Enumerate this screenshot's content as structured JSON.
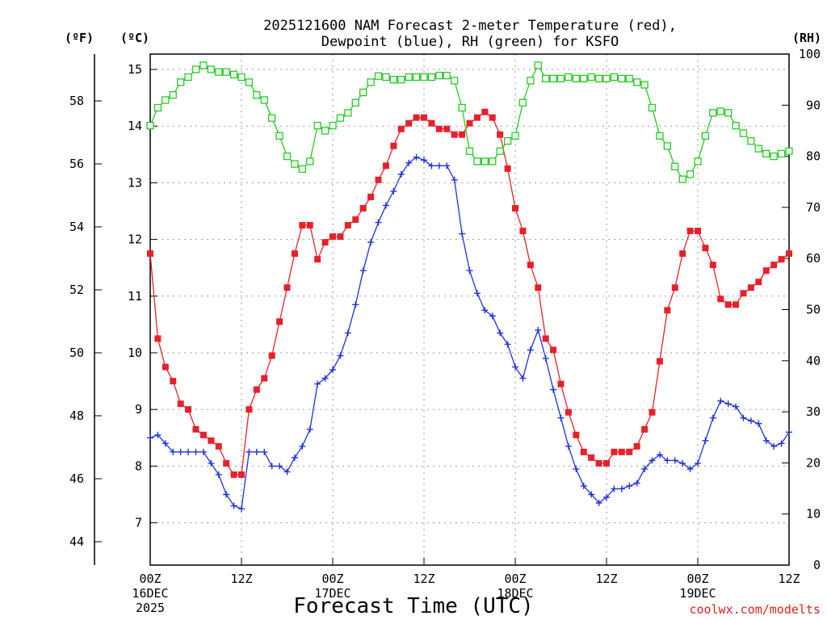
{
  "chart_data": {
    "type": "line",
    "title_lines": [
      "2025121600 NAM Forecast 2-meter Temperature (red),",
      "Dewpoint (blue), RH (green) for KSFO"
    ],
    "xlabel": "Forecast Time (UTC)",
    "credit": "coolwx.com/modelts",
    "y_left_outer_label": "(ºF)",
    "y_left_label": "(ºC)",
    "y_right_label": "(RH)",
    "x_ticks": [
      {
        "h": 0,
        "lines": [
          "00Z",
          "16DEC",
          "2025"
        ]
      },
      {
        "h": 12,
        "lines": [
          "12Z"
        ]
      },
      {
        "h": 24,
        "lines": [
          "00Z",
          "17DEC"
        ]
      },
      {
        "h": 36,
        "lines": [
          "12Z"
        ]
      },
      {
        "h": 48,
        "lines": [
          "00Z",
          "18DEC"
        ]
      },
      {
        "h": 60,
        "lines": [
          "12Z"
        ]
      },
      {
        "h": 72,
        "lines": [
          "00Z",
          "19DEC"
        ]
      },
      {
        "h": 84,
        "lines": [
          "12Z"
        ]
      }
    ],
    "xlim": [
      0,
      84
    ],
    "ylim_c": [
      6.2,
      15.25
    ],
    "ylim_rh": [
      0,
      100
    ],
    "yticks_c": [
      7,
      8,
      9,
      10,
      11,
      12,
      13,
      14,
      15
    ],
    "yticks_f": [
      44,
      46,
      48,
      50,
      52,
      54,
      56,
      58
    ],
    "yticks_rh": [
      0,
      10,
      20,
      30,
      40,
      50,
      60,
      70,
      80,
      90,
      100
    ],
    "grid": true,
    "series": [
      {
        "name": "Temperature",
        "axis": "c",
        "color": "#e8202a",
        "marker": "filled-square",
        "values": [
          11.75,
          10.25,
          9.75,
          9.5,
          9.1,
          9.0,
          8.65,
          8.55,
          8.45,
          8.35,
          8.05,
          7.85,
          7.85,
          9.0,
          9.35,
          9.55,
          9.95,
          10.55,
          11.15,
          11.75,
          12.25,
          12.25,
          11.65,
          11.95,
          12.05,
          12.05,
          12.25,
          12.35,
          12.55,
          12.75,
          13.05,
          13.3,
          13.65,
          13.95,
          14.05,
          14.15,
          14.15,
          14.05,
          13.95,
          13.95,
          13.85,
          13.85,
          14.05,
          14.15,
          14.25,
          14.15,
          13.85,
          13.25,
          12.55,
          12.15,
          11.55,
          11.15,
          10.25,
          10.05,
          9.45,
          8.95,
          8.55,
          8.25,
          8.15,
          8.05,
          8.05,
          8.25,
          8.25,
          8.25,
          8.35,
          8.65,
          8.95,
          9.85,
          10.75,
          11.15,
          11.75,
          12.15,
          12.15,
          11.85,
          11.55,
          10.95,
          10.85,
          10.85,
          11.05,
          11.15,
          11.25,
          11.45,
          11.55,
          11.65,
          11.75
        ]
      },
      {
        "name": "Dewpoint",
        "axis": "c",
        "color": "#2030e0",
        "marker": "plus",
        "values": [
          8.5,
          8.55,
          8.4,
          8.25,
          8.25,
          8.25,
          8.25,
          8.25,
          8.05,
          7.85,
          7.5,
          7.3,
          7.25,
          8.25,
          8.25,
          8.25,
          8.0,
          8.0,
          7.9,
          8.15,
          8.35,
          8.65,
          9.45,
          9.55,
          9.7,
          9.95,
          10.35,
          10.85,
          11.45,
          11.95,
          12.3,
          12.6,
          12.85,
          13.15,
          13.35,
          13.45,
          13.4,
          13.3,
          13.3,
          13.3,
          13.05,
          12.1,
          11.45,
          11.05,
          10.75,
          10.65,
          10.35,
          10.15,
          9.75,
          9.55,
          10.05,
          10.4,
          9.9,
          9.35,
          8.85,
          8.35,
          7.95,
          7.65,
          7.5,
          7.35,
          7.45,
          7.6,
          7.6,
          7.65,
          7.7,
          7.95,
          8.1,
          8.2,
          8.1,
          8.1,
          8.05,
          7.95,
          8.05,
          8.45,
          8.85,
          9.15,
          9.1,
          9.05,
          8.85,
          8.8,
          8.75,
          8.45,
          8.35,
          8.4,
          8.6
        ]
      },
      {
        "name": "RH",
        "axis": "rh",
        "color": "#22cc22",
        "marker": "open-square",
        "values": [
          86,
          89.5,
          91,
          92,
          94.5,
          95.5,
          97,
          97.8,
          97,
          96.5,
          96.5,
          96,
          95.5,
          94.5,
          92,
          91,
          87.5,
          84,
          80,
          78.5,
          77.5,
          79,
          86,
          85,
          86,
          87.5,
          88.5,
          90.5,
          92.5,
          94.5,
          95.7,
          95.5,
          95,
          95,
          95.5,
          95.5,
          95.5,
          95.5,
          95.8,
          95.8,
          94.8,
          89.5,
          81,
          79,
          79,
          79,
          81,
          83,
          84,
          90.5,
          94.8,
          97.8,
          95.2,
          95.2,
          95.2,
          95.5,
          95.2,
          95.2,
          95.5,
          95.2,
          95.2,
          95.5,
          95.2,
          95.2,
          94.5,
          94,
          89.5,
          84,
          82,
          78,
          75.5,
          76.5,
          79,
          84,
          88.5,
          88.8,
          88.5,
          86,
          84.5,
          83,
          81.5,
          80.5,
          80,
          80.5,
          81
        ]
      }
    ]
  }
}
